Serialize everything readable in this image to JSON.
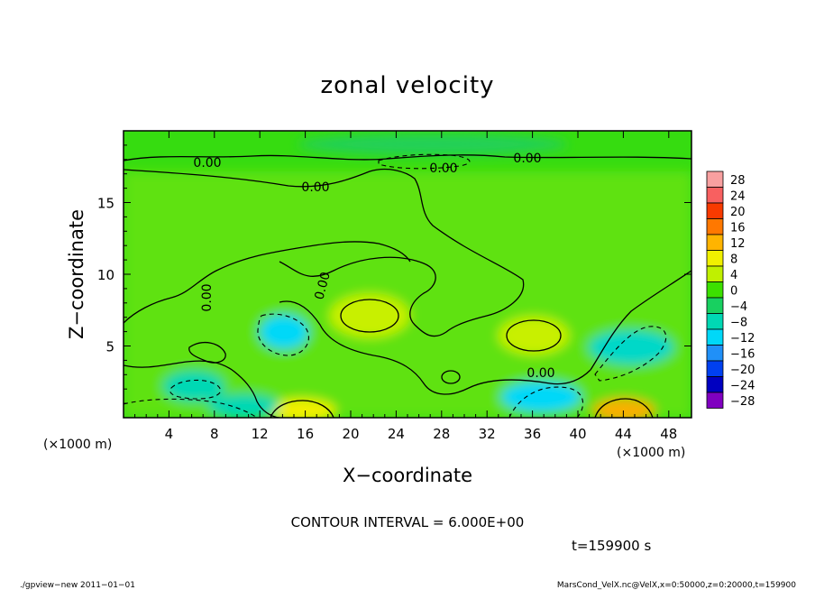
{
  "chart_data": {
    "type": "heatmap",
    "title": "zonal velocity",
    "xlabel": "X−coordinate",
    "ylabel": "Z−coordinate",
    "x_unit_left": "(×1000 m)",
    "x_unit_right": "(×1000 m)",
    "xlim": [
      0,
      50
    ],
    "ylim": [
      0,
      20
    ],
    "x_ticks": [
      4,
      8,
      12,
      16,
      20,
      24,
      28,
      32,
      36,
      40,
      44,
      48
    ],
    "y_ticks": [
      5,
      10,
      15
    ],
    "contour_interval_text": "CONTOUR INTERVAL = 6.000E+00",
    "time_text": "t=159900 s",
    "contour_labels": [
      "0.00",
      "0.00",
      "0.00",
      "0.00",
      "0.00",
      "0.00",
      "0.00"
    ],
    "colorbar": {
      "levels": [
        28,
        24,
        20,
        16,
        12,
        8,
        4,
        0,
        -4,
        -8,
        -12,
        -16,
        -20,
        -24,
        -28
      ],
      "labels": [
        "28",
        "24",
        "20",
        "16",
        "12",
        "8",
        "4",
        "0",
        "−4",
        "−8",
        "−12",
        "−16",
        "−20",
        "−24",
        "−28"
      ],
      "colors": [
        "#f8a0a0",
        "#f86060",
        "#f83a00",
        "#ff7800",
        "#ffb400",
        "#f0f000",
        "#c0f000",
        "#3ce000",
        "#18d060",
        "#00d8b4",
        "#00d8f8",
        "#2090f8",
        "#0040f0",
        "#0000c0",
        "#8000c0"
      ]
    },
    "features": [
      {
        "type": "max",
        "x": 22,
        "z": 7.3,
        "value": 8
      },
      {
        "type": "max",
        "x": 36,
        "z": 5.8,
        "value": 8
      },
      {
        "type": "max",
        "x": 16,
        "z": 0.5,
        "value": 10
      },
      {
        "type": "max",
        "x": 44,
        "z": 0.5,
        "value": 12
      },
      {
        "type": "min",
        "x": 14,
        "z": 5.5,
        "value": -9
      },
      {
        "type": "min",
        "x": 36,
        "z": 1.2,
        "value": -10
      },
      {
        "type": "min",
        "x": 45,
        "z": 4.5,
        "value": -7
      }
    ]
  },
  "footer": {
    "left": "./gpview−new   2011−01−01",
    "right": "MarsCond_VelX.nc@VelX,x=0:50000,z=0:20000,t=159900"
  }
}
